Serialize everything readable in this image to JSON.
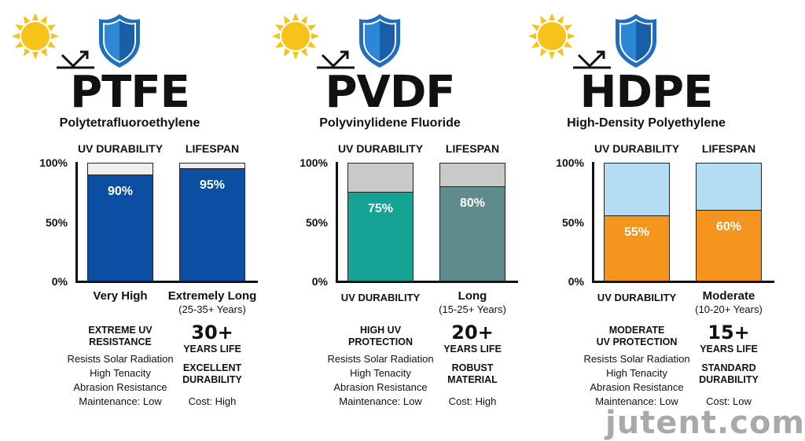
{
  "colors": {
    "sun": "#f7c21a",
    "shield": "#1f6fc0",
    "ptfe_fill": "#0b4ea2",
    "ptfe_bg": "#efefef",
    "pvdf_uv": "#17a394",
    "pvdf_life": "#5f8b8d",
    "pvdf_bg": "#c9c9c9",
    "hdpe_fill": "#f5941e",
    "hdpe_bg": "#b3dcf3"
  },
  "watermark": "jutent.com",
  "chart_data": [
    {
      "type": "bar",
      "title": "PTFE",
      "subtitle": "Polytetrafluoroethylene",
      "categories": [
        "UV DURABILITY",
        "LIFESPAN"
      ],
      "values": [
        90,
        95
      ],
      "data_labels": [
        "90%",
        "95%"
      ],
      "yticks": [
        "100%",
        "50%",
        "0%"
      ],
      "ylim": [
        0,
        100
      ],
      "bottom_labels": [
        {
          "main": "Very High",
          "sub": ""
        },
        {
          "main": "Extremely Long",
          "sub": "(25-35+ Years)"
        }
      ],
      "left_heading": [
        "EXTREME UV",
        "RESISTANCE"
      ],
      "features": [
        "Resists Solar Radiation",
        "High Tenacity",
        "Abrasion Resistance",
        "Maintenance: Low"
      ],
      "big_number": "30+",
      "years_label": "YEARS LIFE",
      "durability": [
        "EXCELLENT",
        "DURABILITY"
      ],
      "cost": "Cost: High"
    },
    {
      "type": "bar",
      "title": "PVDF",
      "subtitle": "Polyvinylidene Fluoride",
      "categories": [
        "UV DURABILITY",
        "LIFESPAN"
      ],
      "values": [
        75,
        80
      ],
      "data_labels": [
        "75%",
        "80%"
      ],
      "yticks": [
        "100%",
        "50%",
        "0%"
      ],
      "ylim": [
        0,
        100
      ],
      "bottom_labels": [
        {
          "main": "UV DURABILITY",
          "sub": ""
        },
        {
          "main": "Long",
          "sub": "(15-25+ Years)"
        }
      ],
      "left_heading": [
        "HIGH UV",
        "PROTECTION"
      ],
      "features": [
        "Resists Solar Radiation",
        "High Tenacity",
        "Abrasion Resistance",
        "Maintenance: Low"
      ],
      "big_number": "20+",
      "years_label": "YEARS LIFE",
      "durability": [
        "ROBUST",
        "MATERIAL"
      ],
      "cost": "Cost: High"
    },
    {
      "type": "bar",
      "title": "HDPE",
      "subtitle": "High-Density Polyethylene",
      "categories": [
        "UV DURABILITY",
        "LIFESPAN"
      ],
      "values": [
        55,
        60
      ],
      "data_labels": [
        "55%",
        "60%"
      ],
      "yticks": [
        "100%",
        "50%",
        "0%"
      ],
      "ylim": [
        0,
        100
      ],
      "bottom_labels": [
        {
          "main": "UV DURABILITY",
          "sub": ""
        },
        {
          "main": "Moderate",
          "sub": "(10-20+ Years)"
        }
      ],
      "left_heading": [
        "MODERATE",
        "UV PROTECTION"
      ],
      "features": [
        "Resists Solar Radiation",
        "High Tenacity",
        "Abrasion Resistance",
        "Maintenance: Low"
      ],
      "big_number": "15+",
      "years_label": "YEARS LIFE",
      "durability": [
        "STANDARD",
        "DURABILITY"
      ],
      "cost": "Cost: Low"
    }
  ]
}
